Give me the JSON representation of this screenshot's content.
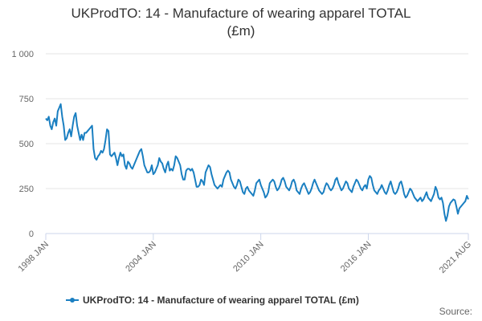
{
  "chart_data": {
    "type": "line",
    "title": "UKProdTO: 14 - Manufacture of wearing apparel TOTAL (£m)",
    "source": "Source:",
    "categories": [
      "1998 JAN",
      null,
      null,
      null,
      null,
      null,
      null,
      null,
      null,
      null,
      null,
      null,
      null,
      null,
      null,
      null,
      null,
      null,
      null,
      null,
      null,
      null,
      null,
      null,
      null,
      null,
      null,
      null,
      null,
      null,
      null,
      null,
      null,
      null,
      null,
      null,
      null,
      null,
      null,
      null,
      null,
      null,
      null,
      null,
      null,
      null,
      null,
      null,
      null,
      null,
      null,
      null,
      null,
      null,
      null,
      null,
      null,
      null,
      null,
      null,
      null,
      null,
      null,
      null,
      null,
      null,
      null,
      null,
      null,
      null,
      null,
      null,
      "2004 JAN",
      null,
      null,
      null,
      null,
      null,
      null,
      null,
      null,
      null,
      null,
      null,
      null,
      null,
      null,
      null,
      null,
      null,
      null,
      null,
      null,
      null,
      null,
      null,
      null,
      null,
      null,
      null,
      null,
      null,
      null,
      null,
      null,
      null,
      null,
      null,
      null,
      null,
      null,
      null,
      null,
      null,
      null,
      null,
      null,
      null,
      null,
      null,
      null,
      null,
      null,
      null,
      null,
      null,
      null,
      null,
      null,
      null,
      null,
      null,
      null,
      null,
      null,
      null,
      null,
      null,
      null,
      null,
      null,
      null,
      null,
      null,
      "2010 JAN",
      null,
      null,
      null,
      null,
      null,
      null,
      null,
      null,
      null,
      null,
      null,
      null,
      null,
      null,
      null,
      null,
      null,
      null,
      null,
      null,
      null,
      null,
      null,
      null,
      null,
      null,
      null,
      null,
      null,
      null,
      null,
      null,
      null,
      null,
      null,
      null,
      null,
      null,
      null,
      null,
      null,
      null,
      null,
      null,
      null,
      null,
      null,
      null,
      null,
      null,
      null,
      null,
      null,
      null,
      null,
      null,
      null,
      null,
      null,
      null,
      null,
      null,
      null,
      null,
      null,
      null,
      null,
      null,
      null,
      null,
      null,
      "2016 JAN",
      null,
      null,
      null,
      null,
      null,
      null,
      null,
      null,
      null,
      null,
      null,
      null,
      null,
      null,
      null,
      null,
      null,
      null,
      null,
      null,
      null,
      null,
      null,
      null,
      null,
      null,
      null,
      null,
      null,
      null,
      null,
      null,
      null,
      null,
      null,
      null,
      null,
      null,
      null,
      null,
      null,
      null,
      null,
      null,
      null,
      null,
      null,
      null,
      null,
      null,
      null,
      null,
      null,
      null,
      null,
      null,
      null,
      null,
      null,
      null,
      null,
      null,
      null,
      null,
      null,
      null,
      "2021 AUG"
    ],
    "series": [
      {
        "name": "UKProdTO: 14 - Manufacture of wearing apparel TOTAL (£m)",
        "color": "#1a7fc1",
        "values": [
          640,
          630,
          650,
          600,
          580,
          620,
          640,
          600,
          680,
          700,
          720,
          650,
          600,
          520,
          530,
          560,
          580,
          540,
          600,
          650,
          670,
          600,
          560,
          520,
          550,
          520,
          560,
          560,
          570,
          580,
          590,
          600,
          470,
          420,
          410,
          430,
          440,
          460,
          450,
          470,
          520,
          580,
          570,
          440,
          430,
          440,
          450,
          420,
          380,
          420,
          450,
          430,
          440,
          380,
          360,
          400,
          390,
          370,
          360,
          380,
          400,
          420,
          440,
          460,
          470,
          430,
          380,
          360,
          340,
          340,
          350,
          380,
          330,
          340,
          360,
          380,
          420,
          400,
          390,
          360,
          340,
          380,
          400,
          350,
          360,
          350,
          380,
          430,
          420,
          400,
          380,
          330,
          300,
          300,
          350,
          360,
          360,
          350,
          360,
          340,
          300,
          260,
          260,
          270,
          300,
          290,
          270,
          340,
          360,
          380,
          370,
          330,
          300,
          270,
          260,
          250,
          260,
          270,
          260,
          300,
          320,
          340,
          350,
          340,
          300,
          280,
          260,
          250,
          270,
          300,
          290,
          260,
          230,
          220,
          250,
          260,
          240,
          230,
          220,
          210,
          240,
          280,
          290,
          300,
          270,
          250,
          230,
          200,
          210,
          230,
          280,
          290,
          300,
          290,
          260,
          240,
          250,
          270,
          300,
          310,
          290,
          260,
          250,
          240,
          260,
          290,
          300,
          280,
          240,
          230,
          220,
          250,
          270,
          280,
          260,
          240,
          220,
          230,
          250,
          280,
          300,
          280,
          260,
          240,
          230,
          220,
          230,
          260,
          280,
          270,
          250,
          240,
          250,
          270,
          300,
          310,
          280,
          260,
          240,
          250,
          270,
          290,
          280,
          250,
          240,
          230,
          260,
          280,
          300,
          290,
          270,
          250,
          240,
          260,
          270,
          250,
          300,
          320,
          310,
          270,
          240,
          230,
          220,
          240,
          250,
          270,
          250,
          230,
          220,
          240,
          270,
          290,
          260,
          230,
          220,
          230,
          250,
          280,
          290,
          260,
          220,
          200,
          210,
          230,
          250,
          240,
          220,
          200,
          190,
          180,
          190,
          200,
          180,
          190,
          210,
          230,
          200,
          190,
          180,
          200,
          220,
          260,
          240,
          200,
          190,
          200,
          170,
          110,
          70,
          100,
          150,
          170,
          180,
          190,
          185,
          150,
          110,
          140,
          150,
          160,
          170,
          180,
          210,
          190
        ]
      }
    ],
    "ylim": [
      0,
      1000
    ],
    "yticks": [
      0,
      250,
      500,
      750,
      {
        "value": 1000,
        "label": "1 000"
      }
    ],
    "grid": true
  }
}
